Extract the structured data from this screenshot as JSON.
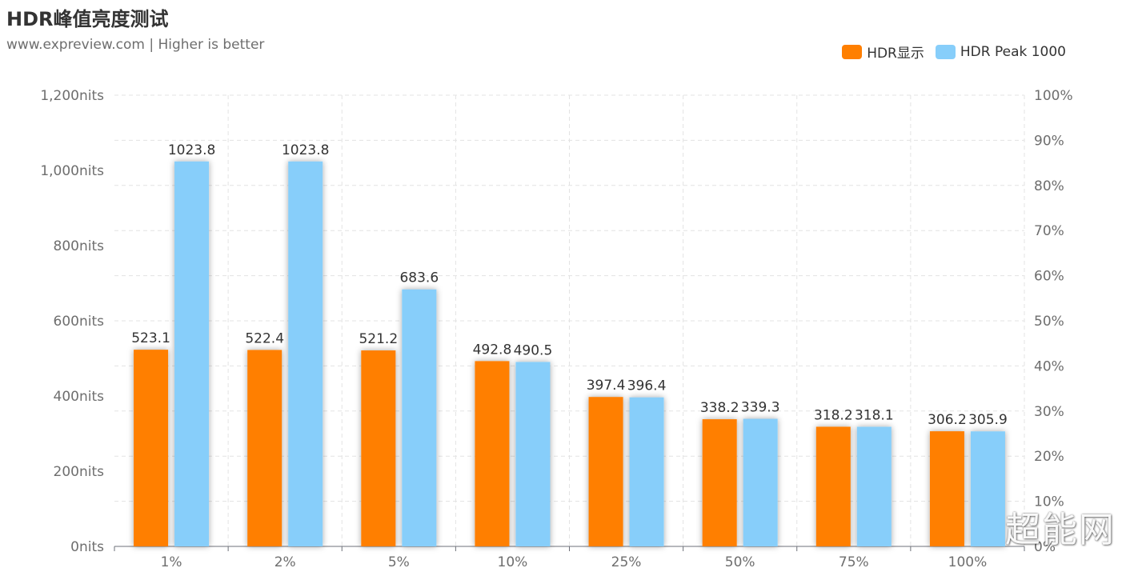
{
  "header": {
    "title": "HDR峰值亮度测试",
    "subtitle": "www.expreview.com | Higher is better"
  },
  "legend": [
    {
      "name": "HDR显示",
      "color": "#ff7f00"
    },
    {
      "name": "HDR Peak 1000",
      "color": "#87cefa"
    }
  ],
  "watermark": "超能网",
  "chart_data": {
    "type": "bar",
    "categories": [
      "1%",
      "2%",
      "5%",
      "10%",
      "25%",
      "50%",
      "75%",
      "100%"
    ],
    "series": [
      {
        "name": "HDR显示",
        "color": "#ff7f00",
        "values": [
          523.1,
          522.4,
          521.2,
          492.8,
          397.4,
          338.2,
          318.2,
          306.2
        ]
      },
      {
        "name": "HDR Peak 1000",
        "color": "#87cefa",
        "values": [
          1023.8,
          1023.8,
          683.6,
          490.5,
          396.4,
          339.3,
          318.1,
          305.9
        ]
      }
    ],
    "ylim": [
      0,
      1200
    ],
    "yticks": [
      "0nits",
      "200nits",
      "400nits",
      "600nits",
      "800nits",
      "1,000nits",
      "1,200nits"
    ],
    "y2lim": [
      0,
      100
    ],
    "y2ticks": [
      "0%",
      "10%",
      "20%",
      "30%",
      "40%",
      "50%",
      "60%",
      "70%",
      "80%",
      "90%",
      "100%"
    ],
    "grid": true,
    "legend_position": "top-right"
  }
}
